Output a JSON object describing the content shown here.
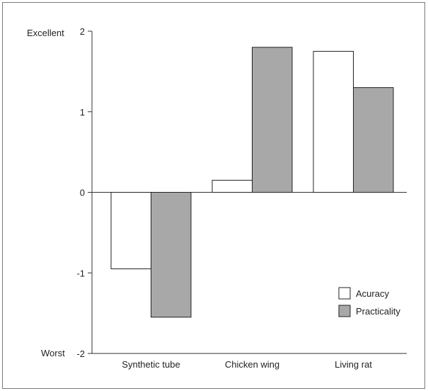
{
  "chart_data": {
    "type": "bar",
    "categories": [
      "Synthetic tube",
      "Chicken wing",
      "Living rat"
    ],
    "series": [
      {
        "name": "Acuracy",
        "values": [
          -0.95,
          0.15,
          1.75
        ],
        "color": "#ffffff"
      },
      {
        "name": "Practicality",
        "values": [
          -1.55,
          1.8,
          1.3
        ],
        "color": "#a8a8a8"
      }
    ],
    "ylim": [
      -2,
      2
    ],
    "yticks": [
      "2",
      "1",
      "0",
      "-1",
      "-2"
    ],
    "ytick_values": [
      2,
      1,
      0,
      -1,
      -2
    ],
    "scale_labels": {
      "top": "Excellent",
      "bottom": "Worst"
    },
    "legend_position": "bottom-right",
    "grid": false,
    "bar_stroke_color": "#222222",
    "axis_color": "#333333"
  }
}
